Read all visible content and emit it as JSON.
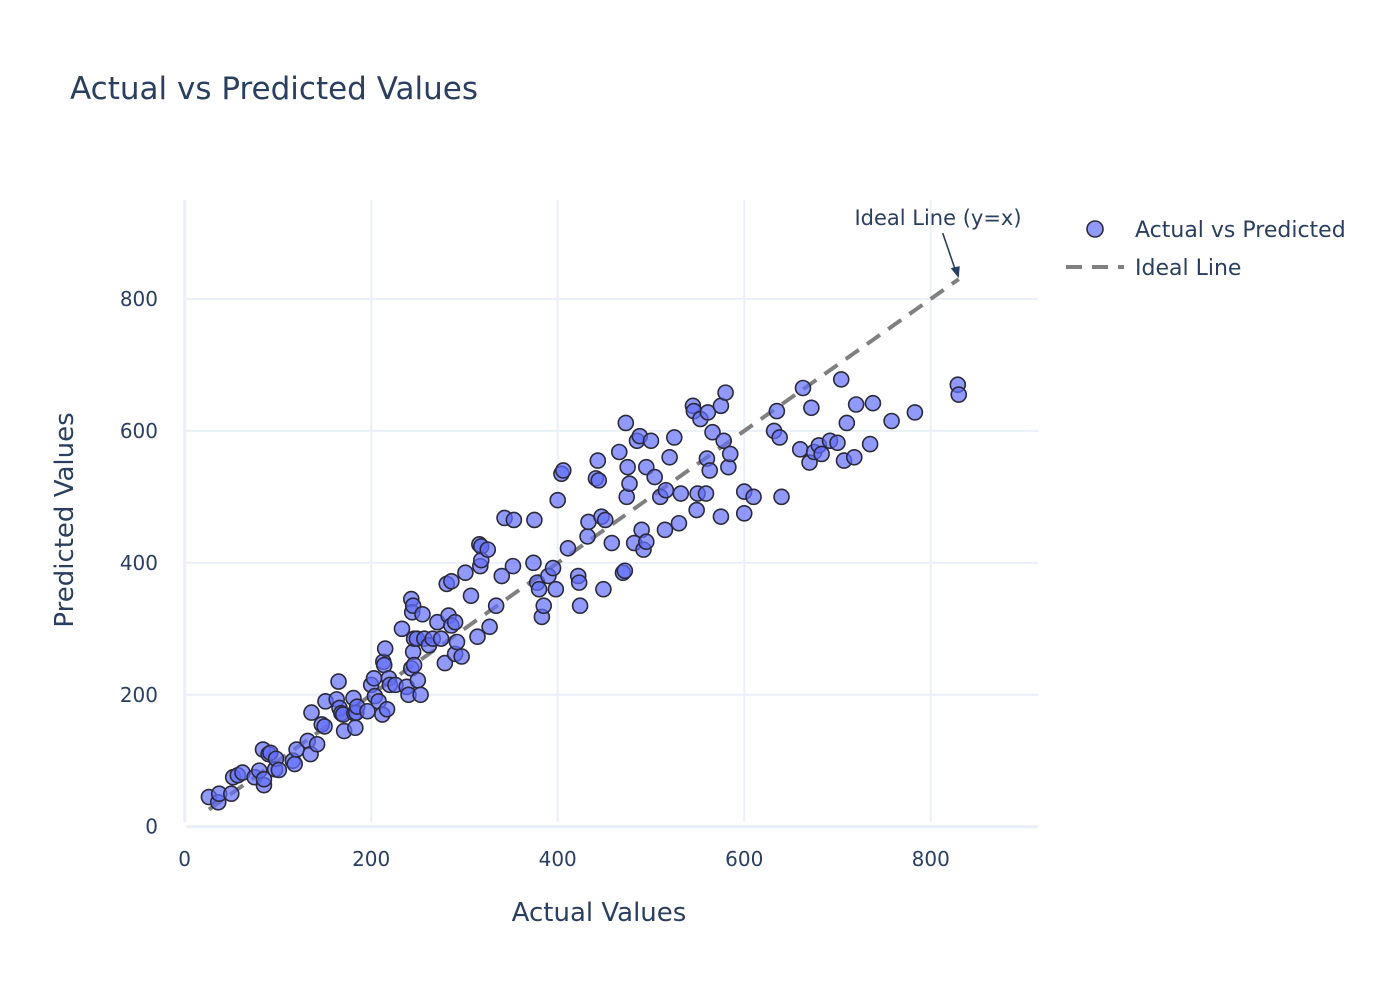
{
  "chart_data": {
    "type": "scatter",
    "title": "Actual vs Predicted Values",
    "xlabel": "Actual Values",
    "ylabel": "Predicted Values",
    "xlim": [
      -5,
      915
    ],
    "ylim": [
      -5,
      950
    ],
    "xticks": [
      0,
      200,
      400,
      600,
      800
    ],
    "yticks": [
      0,
      200,
      400,
      600,
      800
    ],
    "grid": true,
    "legend_placement": "top-right",
    "colors": {
      "points": "#636efa",
      "ideal": "#808080",
      "text": "#2a3f5f",
      "grid": "#ebf0f8"
    },
    "annotation": {
      "text": "Ideal Line (y=x)",
      "x": 830,
      "y": 830
    },
    "series": [
      {
        "name": "Actual vs Predicted",
        "mode": "markers",
        "x": [
          26,
          36,
          37,
          50,
          52,
          57,
          62,
          75,
          80,
          84,
          85,
          85,
          90,
          92,
          97,
          98,
          101,
          116,
          118,
          120,
          132,
          135,
          136,
          142,
          147,
          150,
          151,
          163,
          165,
          166,
          168,
          170,
          171,
          181,
          182,
          183,
          184,
          185,
          196,
          200,
          203,
          204,
          208,
          212,
          213,
          214,
          215,
          217,
          219,
          220,
          226,
          233,
          238,
          240,
          243,
          243,
          244,
          245,
          245,
          246,
          246,
          249,
          250,
          253,
          255,
          257,
          262,
          266,
          271,
          275,
          279,
          281,
          283,
          286,
          286,
          290,
          290,
          292,
          297,
          301,
          307,
          314,
          316,
          317,
          318,
          318,
          325,
          327,
          334,
          340,
          343,
          352,
          353,
          374,
          375,
          378,
          380,
          383,
          385,
          390,
          395,
          398,
          400,
          404,
          406,
          411,
          422,
          423,
          424,
          432,
          433,
          441,
          443,
          444,
          447,
          449,
          451,
          458,
          466,
          470,
          472,
          473,
          474,
          475,
          477,
          482,
          485,
          488,
          490,
          492,
          495,
          495,
          500,
          504,
          510,
          515,
          516,
          520,
          525,
          530,
          532,
          545,
          546,
          549,
          550,
          553,
          559,
          560,
          561,
          563,
          566,
          575,
          575,
          578,
          580,
          583,
          585,
          600,
          600,
          610,
          632,
          635,
          638,
          640,
          660,
          663,
          670,
          672,
          675,
          680,
          683,
          692,
          700,
          704,
          707,
          710,
          718,
          720,
          735,
          738,
          758,
          783,
          829,
          830
        ],
        "y": [
          45,
          37,
          50,
          50,
          75,
          78,
          82,
          75,
          85,
          117,
          63,
          72,
          110,
          112,
          87,
          103,
          86,
          100,
          95,
          117,
          130,
          110,
          173,
          125,
          155,
          152,
          190,
          193,
          220,
          180,
          172,
          170,
          145,
          195,
          172,
          150,
          173,
          182,
          175,
          215,
          225,
          198,
          190,
          170,
          250,
          245,
          270,
          178,
          225,
          215,
          215,
          300,
          212,
          200,
          345,
          240,
          325,
          265,
          335,
          245,
          285,
          285,
          222,
          200,
          322,
          285,
          275,
          285,
          310,
          285,
          248,
          368,
          320,
          372,
          305,
          310,
          262,
          280,
          258,
          385,
          350,
          288,
          428,
          395,
          425,
          404,
          420,
          303,
          335,
          380,
          468,
          395,
          465,
          400,
          465,
          370,
          360,
          318,
          335,
          380,
          392,
          360,
          495,
          535,
          540,
          422,
          380,
          370,
          335,
          440,
          462,
          528,
          555,
          525,
          470,
          360,
          465,
          430,
          568,
          385,
          388,
          612,
          500,
          545,
          520,
          430,
          585,
          592,
          450,
          420,
          432,
          545,
          585,
          530,
          500,
          450,
          510,
          560,
          590,
          460,
          505,
          638,
          630,
          480,
          505,
          618,
          505,
          558,
          628,
          540,
          598,
          470,
          638,
          585,
          658,
          545,
          565,
          508,
          475,
          500,
          600,
          630,
          590,
          500,
          572,
          665,
          552,
          635,
          568,
          578,
          565,
          585,
          582,
          678,
          555,
          612,
          560,
          640,
          580,
          642,
          615,
          628,
          670,
          655
        ]
      },
      {
        "name": "Ideal Line",
        "mode": "lines",
        "x": [
          26,
          830
        ],
        "y": [
          26,
          830
        ]
      }
    ]
  }
}
